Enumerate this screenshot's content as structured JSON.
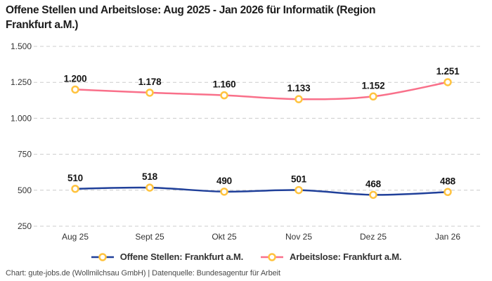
{
  "title": {
    "line1": "Offene Stellen und Arbeitslose: Aug 2025 - Jan 2026 für Informatik (Region",
    "line2": "Frankfurt a.M.)"
  },
  "footer": {
    "text": "Chart: gute-jobs.de (Wollmilchsau GmbH) | Datenquelle: Bundesagentur für Arbeit"
  },
  "colors": {
    "open_positions": "#20409a",
    "unemployed": "#f9708a",
    "marker_ring": "#ffc33f",
    "marker_fill": "#ffffff",
    "grid": "#cccccc",
    "tick_text": "#333333",
    "value_label_text": "#141414",
    "title_text": "#1c1c1c",
    "footer_text": "#4a4a4a"
  },
  "chart_data": {
    "type": "line",
    "title": "Offene Stellen und Arbeitslose: Aug 2025 - Jan 2026 für Informatik (Region Frankfurt a.M.)",
    "x": [
      "Aug 25",
      "Sept 25",
      "Okt 25",
      "Nov 25",
      "Dez 25",
      "Jan 26"
    ],
    "series": [
      {
        "name": "Offene Stellen: Frankfurt a.M.",
        "values": [
          510,
          518,
          490,
          501,
          468,
          488
        ],
        "labels": [
          "510",
          "518",
          "490",
          "501",
          "468",
          "488"
        ],
        "color_key": "open_positions"
      },
      {
        "name": "Arbeitslose: Frankfurt a.M.",
        "values": [
          1200,
          1178,
          1160,
          1133,
          1152,
          1251
        ],
        "labels": [
          "1.200",
          "1.178",
          "1.160",
          "1.133",
          "1.152",
          "1.251"
        ],
        "color_key": "unemployed"
      }
    ],
    "y_ticks": [
      {
        "value": 1500,
        "label": "1.500"
      },
      {
        "value": 1250,
        "label": "1.250"
      },
      {
        "value": 1000,
        "label": "1.000"
      },
      {
        "value": 750,
        "label": "750"
      },
      {
        "value": 500,
        "label": "500"
      },
      {
        "value": 250,
        "label": "250"
      }
    ],
    "ylim": [
      250,
      1500
    ],
    "xlabel": "",
    "ylabel": "",
    "grid": "dashed-horizontal",
    "legend_position": "bottom",
    "marker_style": "open-circle-yellow",
    "curve": "smooth"
  }
}
